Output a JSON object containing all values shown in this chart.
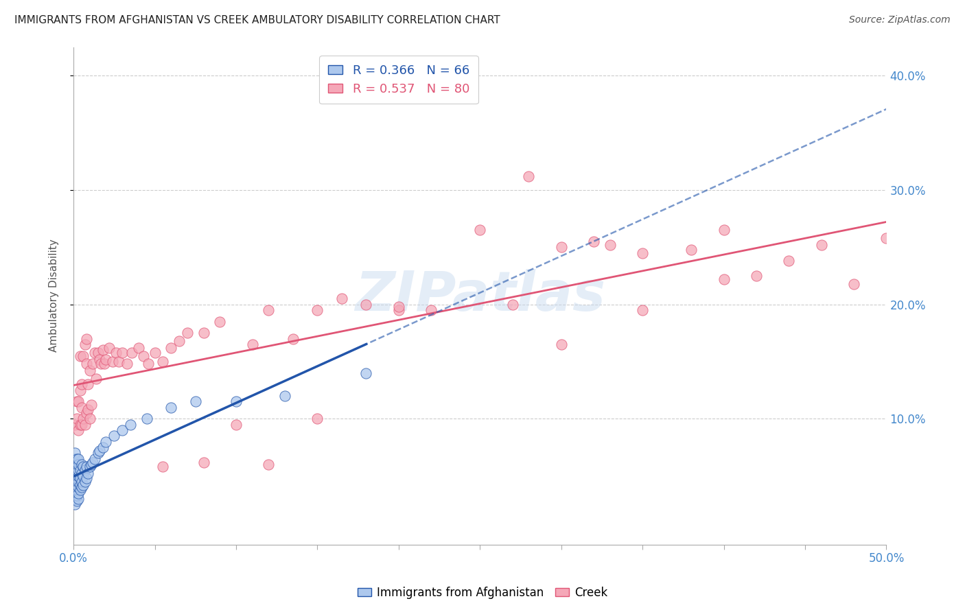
{
  "title": "IMMIGRANTS FROM AFGHANISTAN VS CREEK AMBULATORY DISABILITY CORRELATION CHART",
  "source": "Source: ZipAtlas.com",
  "ylabel": "Ambulatory Disability",
  "xlim": [
    0.0,
    0.5
  ],
  "ylim": [
    -0.01,
    0.425
  ],
  "xticks": [
    0.0,
    0.05,
    0.1,
    0.15,
    0.2,
    0.25,
    0.3,
    0.35,
    0.4,
    0.45,
    0.5
  ],
  "yticks": [
    0.1,
    0.2,
    0.3,
    0.4
  ],
  "legend_r_afg": "R = 0.366",
  "legend_n_afg": "N = 66",
  "legend_r_creek": "R = 0.537",
  "legend_n_creek": "N = 80",
  "afg_color": "#adc8ed",
  "creek_color": "#f5a8b8",
  "afg_line_color": "#2255aa",
  "creek_line_color": "#e05575",
  "background_color": "#ffffff",
  "grid_color": "#cccccc",
  "watermark": "ZIPatlas",
  "afg_points_x": [
    0.001,
    0.001,
    0.001,
    0.001,
    0.001,
    0.001,
    0.001,
    0.001,
    0.001,
    0.001,
    0.001,
    0.001,
    0.001,
    0.001,
    0.001,
    0.002,
    0.002,
    0.002,
    0.002,
    0.002,
    0.002,
    0.002,
    0.002,
    0.002,
    0.002,
    0.003,
    0.003,
    0.003,
    0.003,
    0.003,
    0.003,
    0.003,
    0.003,
    0.004,
    0.004,
    0.004,
    0.004,
    0.005,
    0.005,
    0.005,
    0.005,
    0.006,
    0.006,
    0.006,
    0.007,
    0.007,
    0.008,
    0.008,
    0.009,
    0.01,
    0.011,
    0.012,
    0.013,
    0.015,
    0.016,
    0.018,
    0.02,
    0.025,
    0.03,
    0.035,
    0.045,
    0.06,
    0.075,
    0.1,
    0.13,
    0.18
  ],
  "afg_points_y": [
    0.025,
    0.03,
    0.035,
    0.038,
    0.042,
    0.045,
    0.048,
    0.05,
    0.052,
    0.055,
    0.057,
    0.06,
    0.062,
    0.065,
    0.07,
    0.028,
    0.033,
    0.038,
    0.042,
    0.045,
    0.048,
    0.052,
    0.055,
    0.06,
    0.065,
    0.03,
    0.035,
    0.04,
    0.045,
    0.05,
    0.055,
    0.06,
    0.065,
    0.038,
    0.042,
    0.048,
    0.055,
    0.04,
    0.045,
    0.052,
    0.06,
    0.042,
    0.05,
    0.058,
    0.045,
    0.055,
    0.048,
    0.058,
    0.052,
    0.058,
    0.06,
    0.062,
    0.065,
    0.07,
    0.072,
    0.075,
    0.08,
    0.085,
    0.09,
    0.095,
    0.1,
    0.11,
    0.115,
    0.115,
    0.12,
    0.14
  ],
  "creek_points_x": [
    0.001,
    0.002,
    0.002,
    0.003,
    0.003,
    0.004,
    0.004,
    0.004,
    0.005,
    0.005,
    0.005,
    0.006,
    0.006,
    0.007,
    0.007,
    0.008,
    0.008,
    0.008,
    0.009,
    0.009,
    0.01,
    0.01,
    0.011,
    0.012,
    0.013,
    0.014,
    0.015,
    0.016,
    0.017,
    0.018,
    0.019,
    0.02,
    0.022,
    0.024,
    0.026,
    0.028,
    0.03,
    0.033,
    0.036,
    0.04,
    0.043,
    0.046,
    0.05,
    0.055,
    0.06,
    0.065,
    0.07,
    0.08,
    0.09,
    0.1,
    0.11,
    0.12,
    0.135,
    0.15,
    0.165,
    0.18,
    0.2,
    0.22,
    0.25,
    0.27,
    0.3,
    0.32,
    0.35,
    0.38,
    0.4,
    0.42,
    0.44,
    0.46,
    0.48,
    0.5,
    0.055,
    0.08,
    0.12,
    0.15,
    0.2,
    0.3,
    0.35,
    0.4,
    0.28,
    0.33
  ],
  "creek_points_y": [
    0.095,
    0.1,
    0.115,
    0.09,
    0.115,
    0.095,
    0.125,
    0.155,
    0.095,
    0.11,
    0.13,
    0.1,
    0.155,
    0.095,
    0.165,
    0.105,
    0.148,
    0.17,
    0.108,
    0.13,
    0.1,
    0.142,
    0.112,
    0.148,
    0.158,
    0.135,
    0.158,
    0.152,
    0.148,
    0.16,
    0.148,
    0.152,
    0.162,
    0.15,
    0.158,
    0.15,
    0.158,
    0.148,
    0.158,
    0.162,
    0.155,
    0.148,
    0.158,
    0.15,
    0.162,
    0.168,
    0.175,
    0.175,
    0.185,
    0.095,
    0.165,
    0.195,
    0.17,
    0.195,
    0.205,
    0.2,
    0.195,
    0.195,
    0.265,
    0.2,
    0.165,
    0.255,
    0.195,
    0.248,
    0.222,
    0.225,
    0.238,
    0.252,
    0.218,
    0.258,
    0.058,
    0.062,
    0.06,
    0.1,
    0.198,
    0.25,
    0.245,
    0.265,
    0.312,
    0.252
  ]
}
